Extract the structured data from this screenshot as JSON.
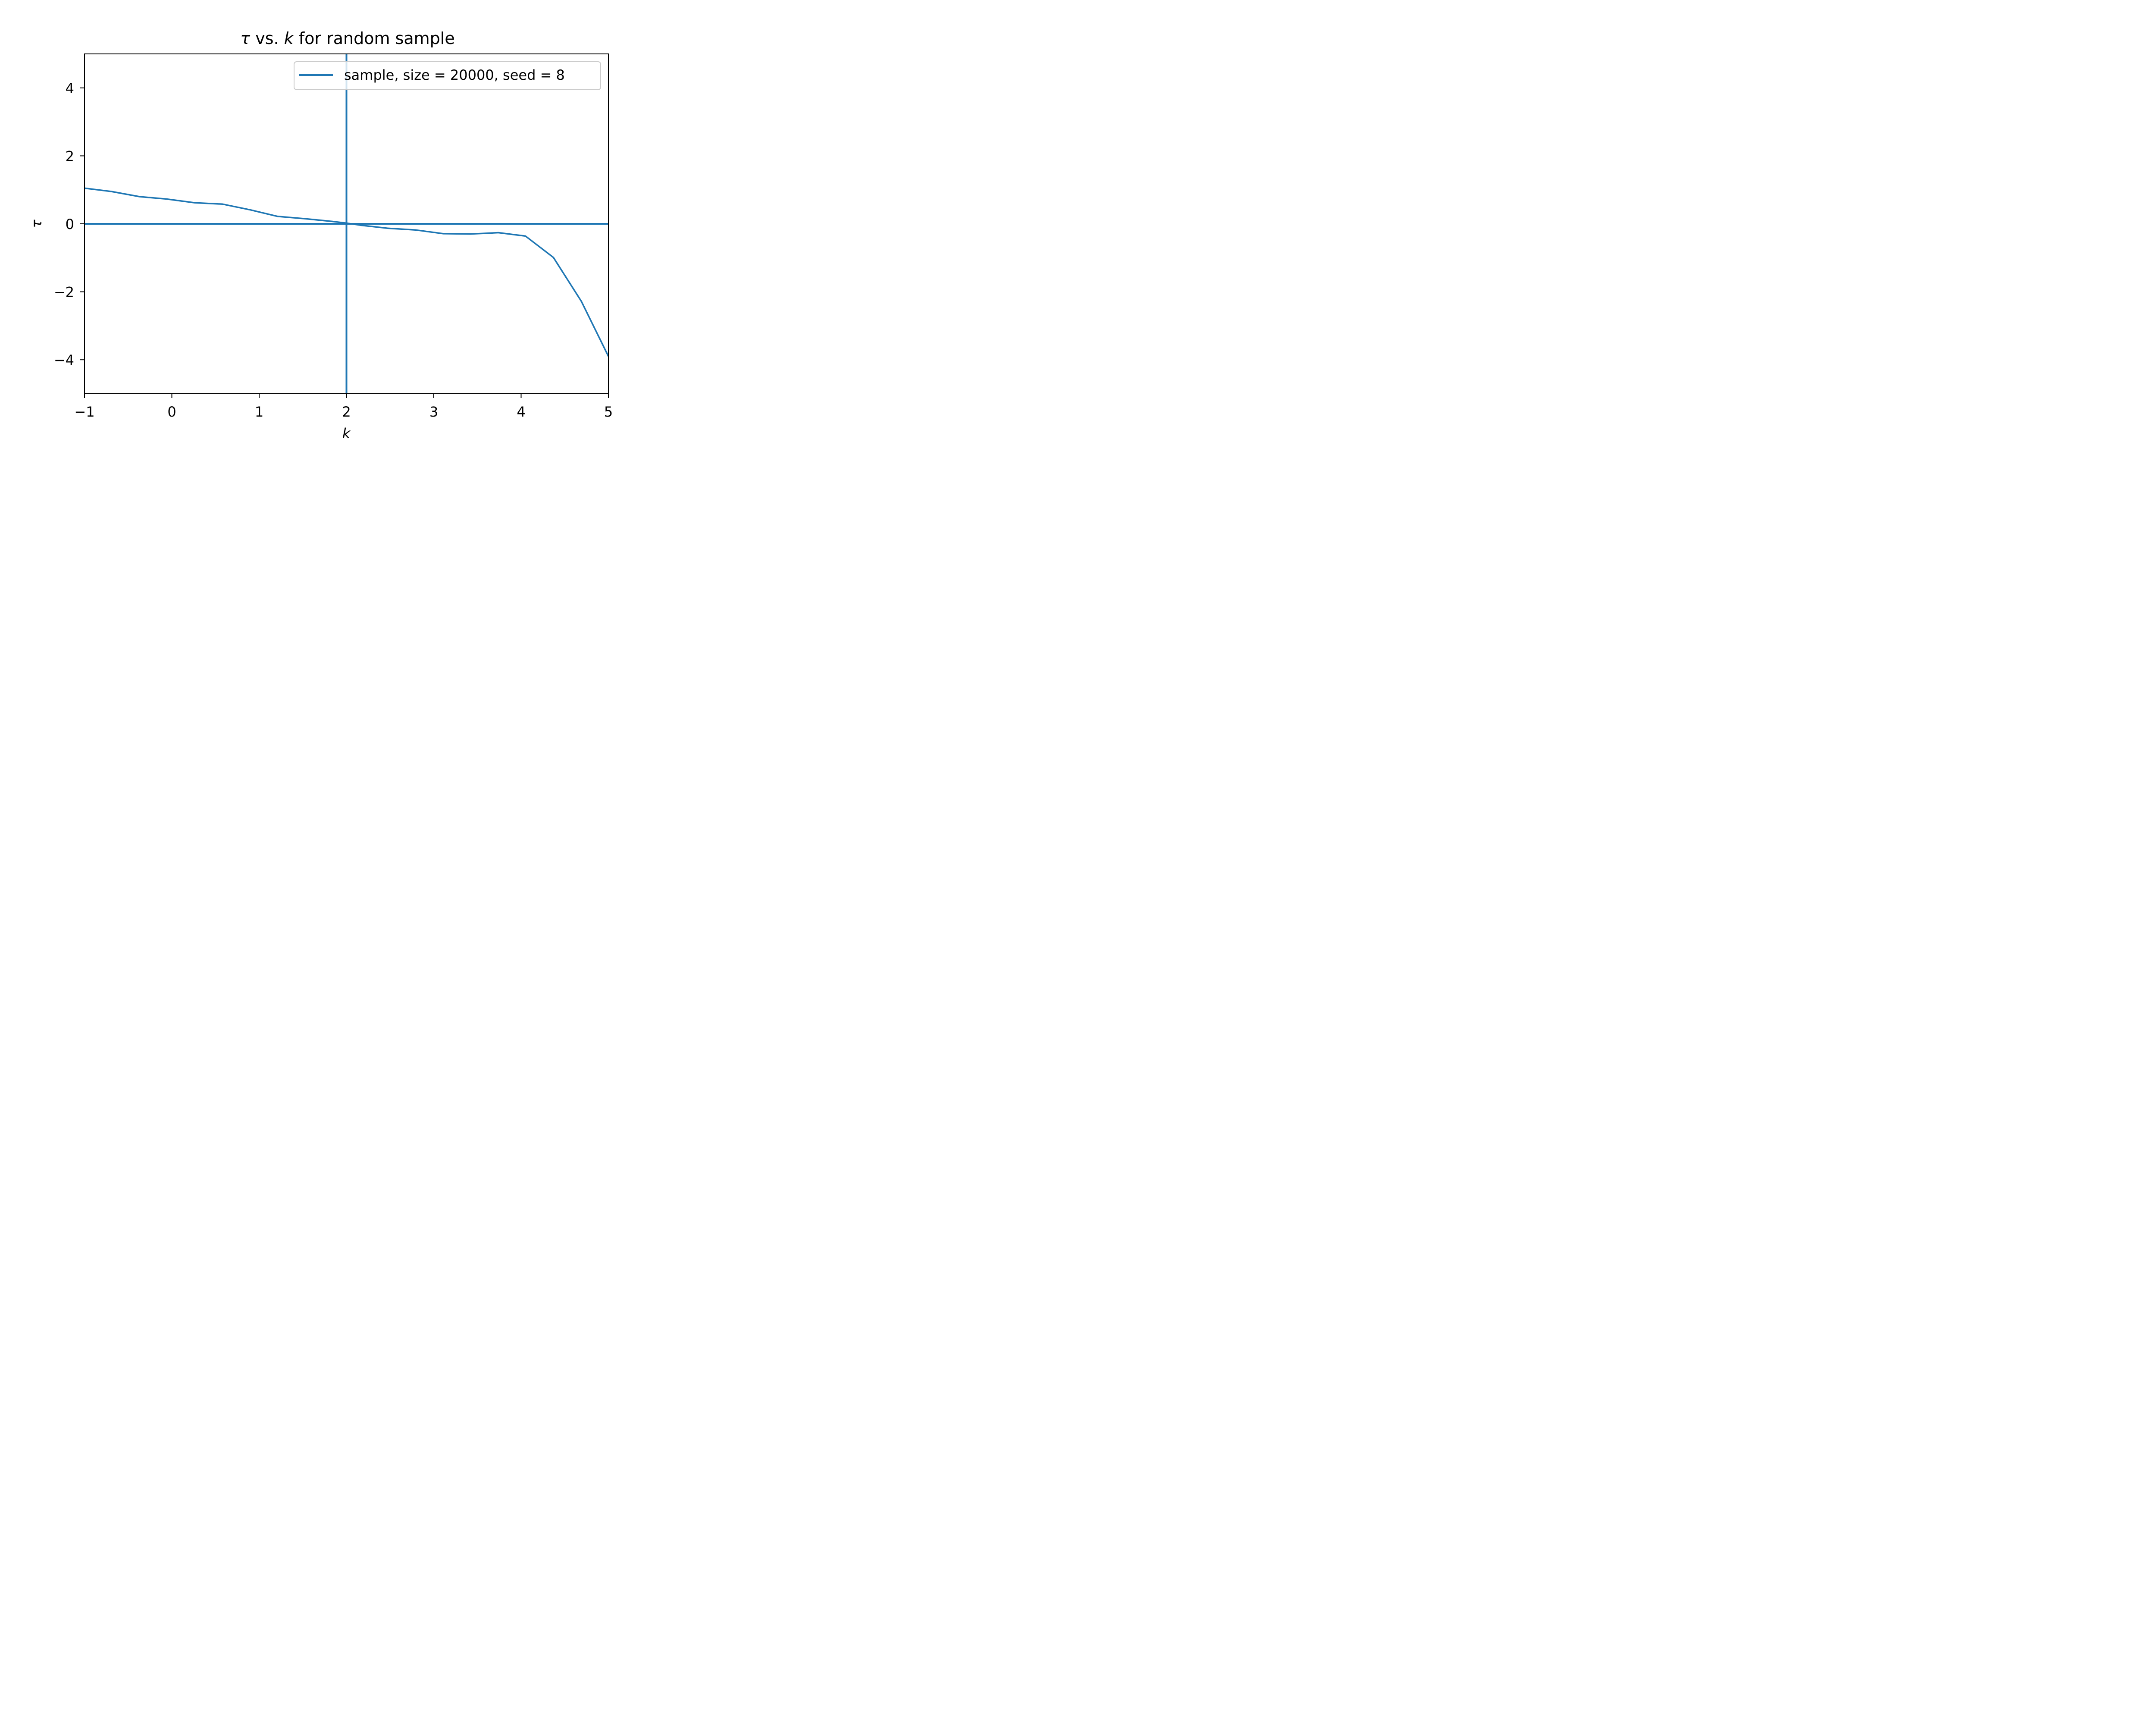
{
  "chart_data": {
    "type": "line",
    "title_parts": [
      "τ",
      " vs. ",
      "k",
      " for random sample"
    ],
    "xlabel": "k",
    "ylabel": "τ",
    "xlim": [
      -1,
      5
    ],
    "ylim": [
      -5,
      5
    ],
    "xticks": [
      -1,
      0,
      1,
      2,
      3,
      4,
      5
    ],
    "xtick_labels": [
      "−1",
      "0",
      "1",
      "2",
      "3",
      "4",
      "5"
    ],
    "yticks": [
      -4,
      -2,
      0,
      2,
      4
    ],
    "ytick_labels": [
      "−4",
      "−2",
      "0",
      "2",
      "4"
    ],
    "grid": false,
    "legend": {
      "placement": "top-right"
    },
    "series": [
      {
        "name": "sample, size = 20000, seed = 8",
        "color": "#1f77b4",
        "x": [
          -1.0,
          -0.69,
          -0.37,
          -0.06,
          0.26,
          0.58,
          0.9,
          1.21,
          1.53,
          1.84,
          2.0,
          2.16,
          2.47,
          2.79,
          3.11,
          3.42,
          3.74,
          4.05,
          4.37,
          4.69,
          5.0
        ],
        "y": [
          1.05,
          0.95,
          0.8,
          0.73,
          0.62,
          0.58,
          0.41,
          0.22,
          0.15,
          0.07,
          0.02,
          -0.04,
          -0.13,
          -0.18,
          -0.29,
          -0.3,
          -0.26,
          -0.36,
          -0.99,
          -2.28,
          -3.9
        ]
      }
    ],
    "reference_lines": [
      {
        "orientation": "horizontal",
        "value": 0,
        "color": "#1f77b4"
      },
      {
        "orientation": "vertical",
        "value": 2,
        "color": "#1f77b4"
      }
    ]
  }
}
